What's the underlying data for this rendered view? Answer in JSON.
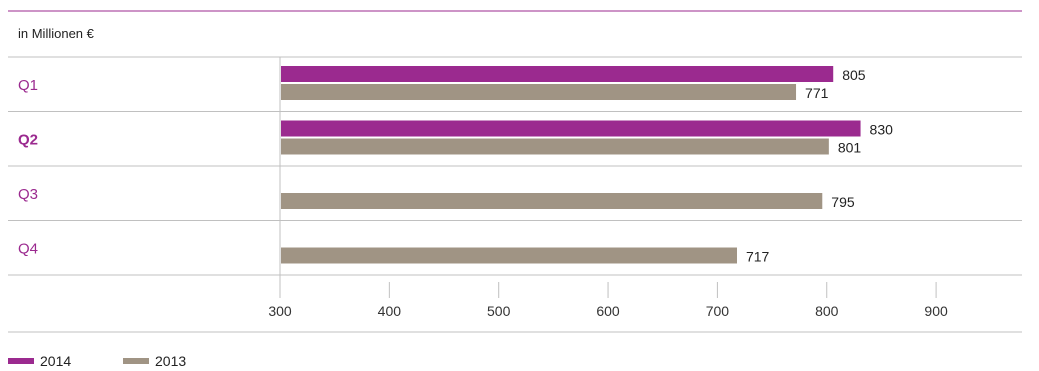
{
  "chart_data": {
    "type": "bar",
    "orientation": "horizontal",
    "unit_label": "in Millionen €",
    "categories": [
      "Q1",
      "Q2",
      "Q3",
      "Q4"
    ],
    "highlighted_category": "Q2",
    "series": [
      {
        "name": "2014",
        "color": "#9b2a8f",
        "values": [
          805,
          830,
          null,
          null
        ]
      },
      {
        "name": "2013",
        "color": "#a09484",
        "values": [
          771,
          801,
          795,
          717
        ]
      }
    ],
    "xlim": [
      300,
      985
    ],
    "xticks": [
      300,
      400,
      500,
      600,
      700,
      800,
      900
    ],
    "legend_position": "bottom-left",
    "grid": false
  },
  "colors": {
    "accent": "#9b2a8f",
    "category_text": "#9b2a8f",
    "rule": "#c0c0c0",
    "top_rule": "#9b2a8f"
  }
}
